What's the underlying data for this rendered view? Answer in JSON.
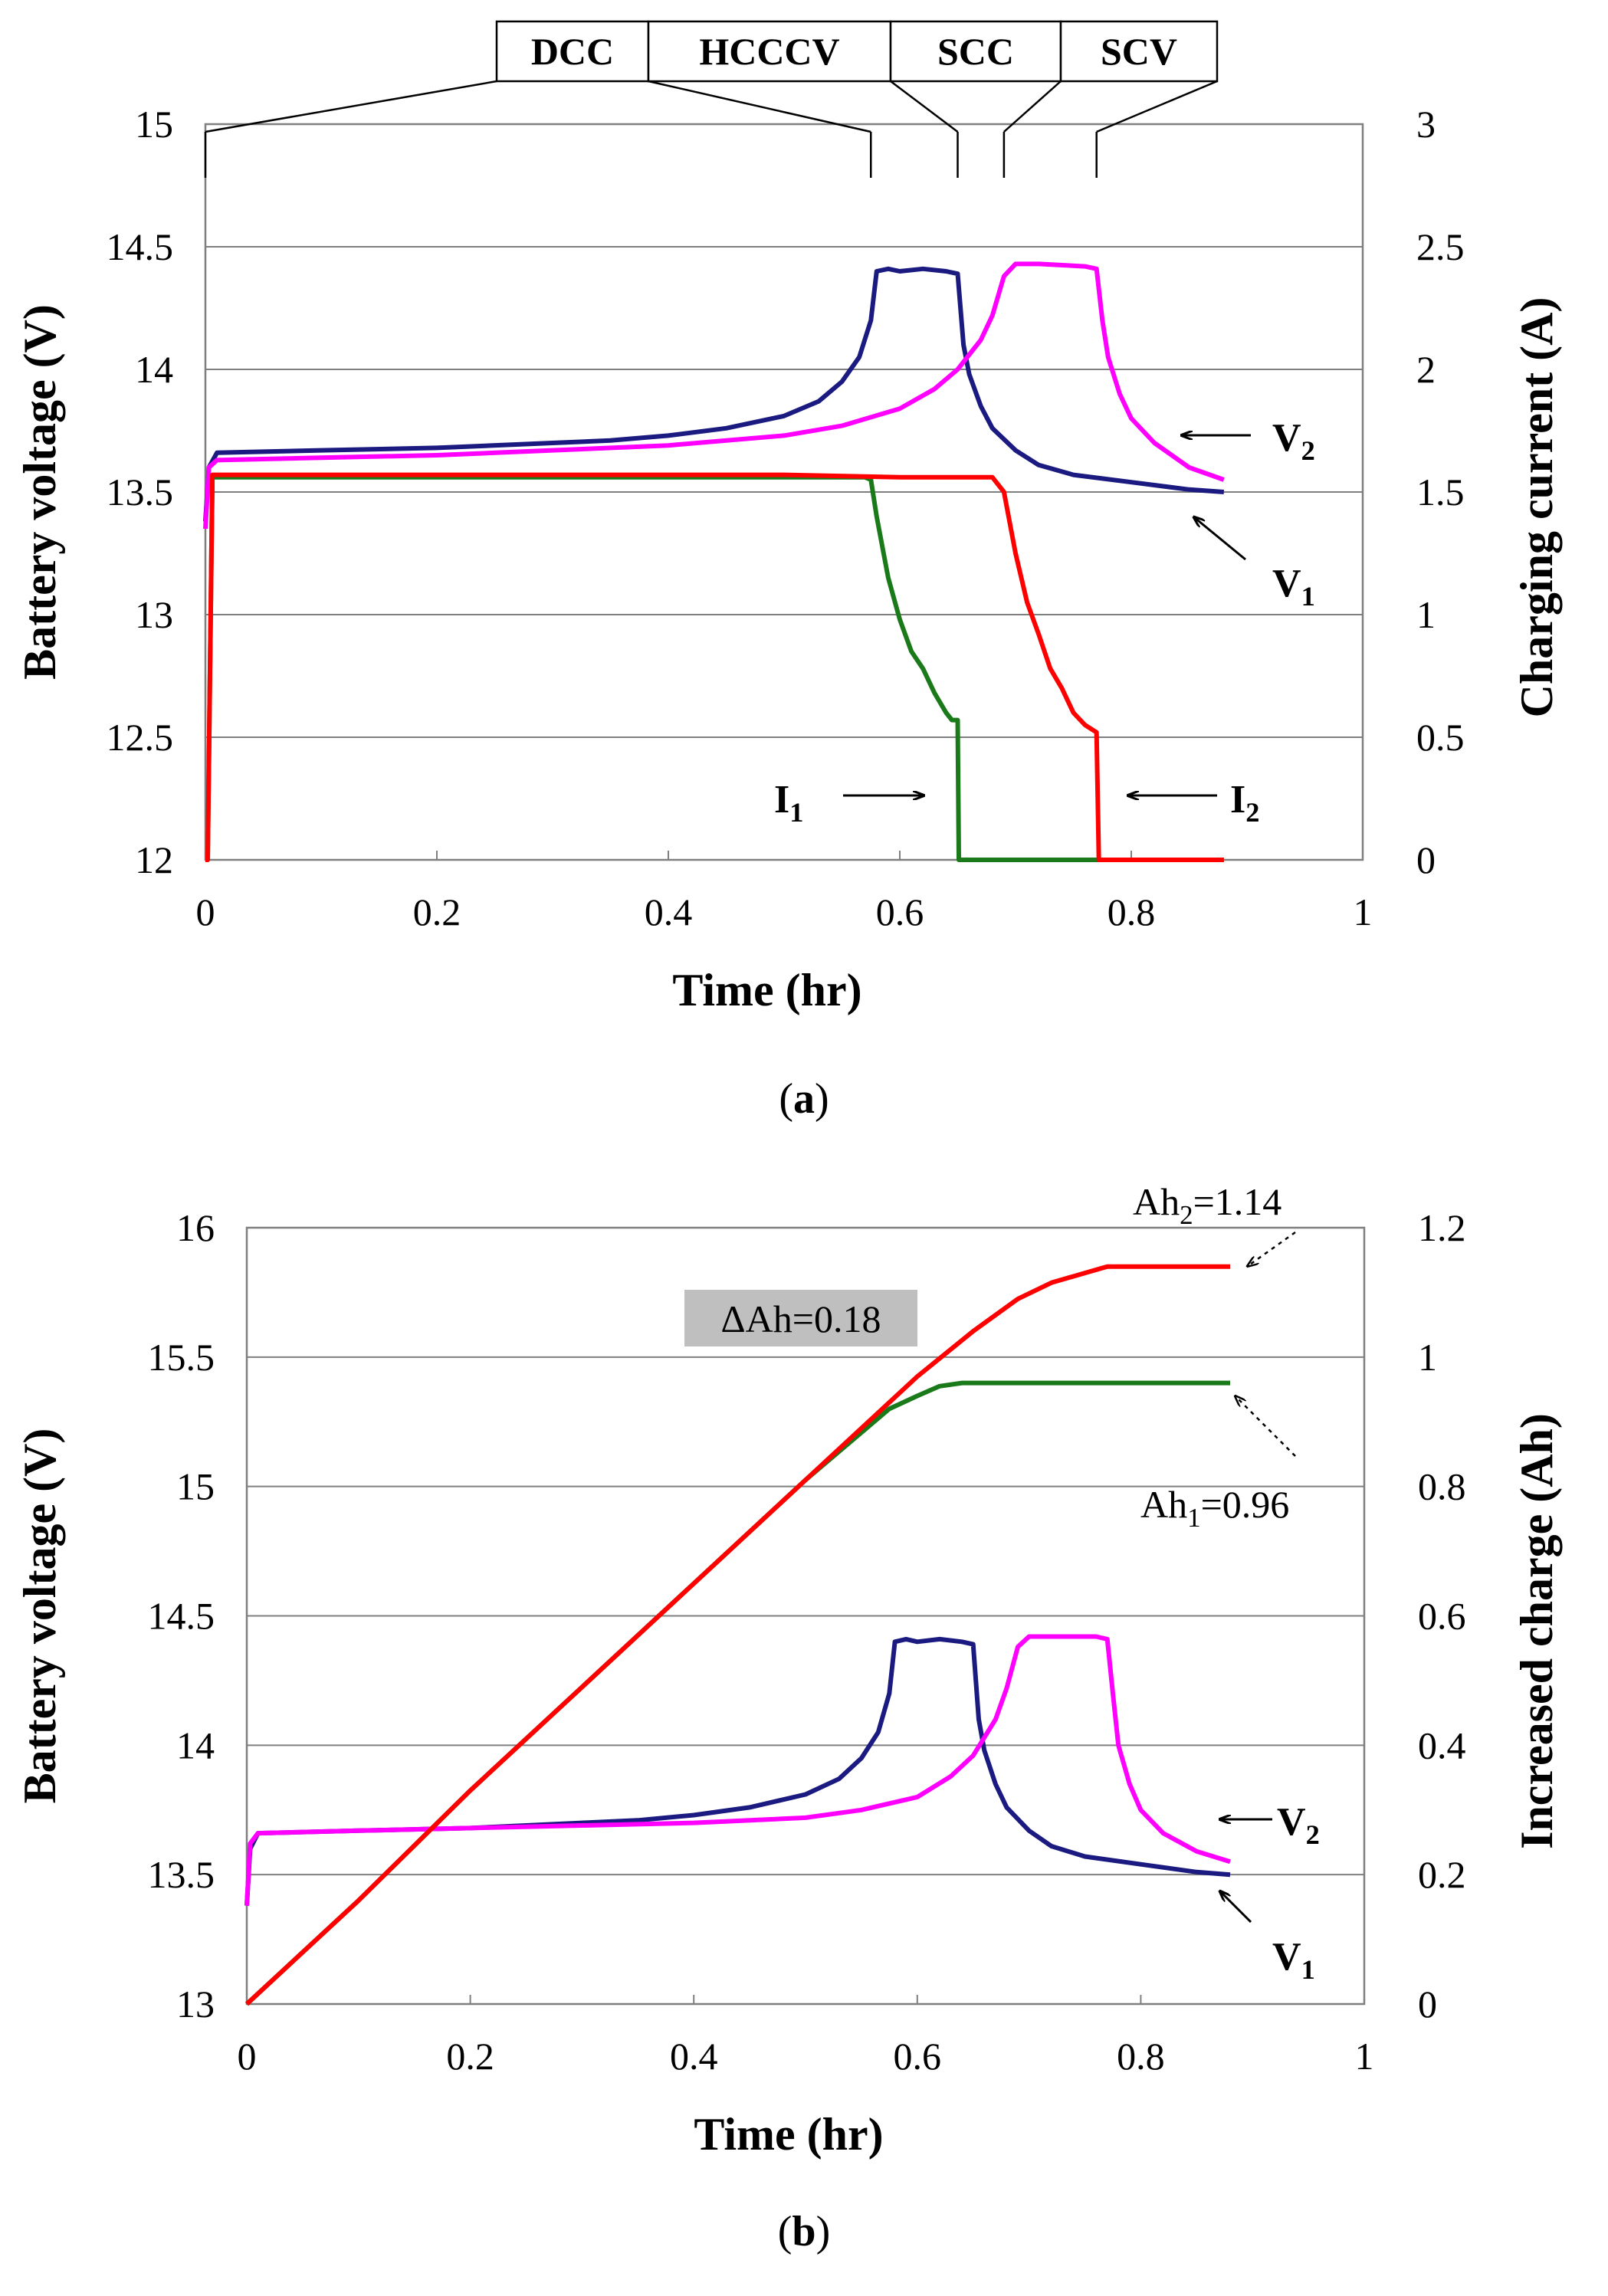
{
  "chart_data": [
    {
      "panel": "(a)",
      "panel_letter": "a",
      "type": "line",
      "xlabel": "Time (hr)",
      "ylabel_left": "Battery voltage (V)",
      "ylabel_right": "Charging current (A)",
      "xlim": [
        0,
        1
      ],
      "ylim_left": [
        12,
        15
      ],
      "ylim_right": [
        0,
        3
      ],
      "x_ticks": [
        "0",
        "0.2",
        "0.4",
        "0.6",
        "0.8",
        "1"
      ],
      "y_ticks_left": [
        "12",
        "12.5",
        "13",
        "13.5",
        "14",
        "14.5",
        "15"
      ],
      "y_ticks_right": [
        "0",
        "0.5",
        "1",
        "1.5",
        "2",
        "2.5",
        "3"
      ],
      "grid": "horizontal",
      "phases": [
        {
          "label": "DCC",
          "start": 0.0,
          "end": 0.575
        },
        {
          "label": "HCCCV",
          "start": 0.575,
          "end": 0.65
        },
        {
          "label": "SCC",
          "start": 0.65,
          "end": 0.69
        },
        {
          "label": "SCV",
          "start": 0.69,
          "end": 0.77
        }
      ],
      "series": [
        {
          "name": "V1",
          "axis": "left",
          "color": "#1a1a80",
          "x": [
            0,
            0.003,
            0.01,
            0.1,
            0.2,
            0.3,
            0.35,
            0.4,
            0.45,
            0.5,
            0.53,
            0.55,
            0.565,
            0.575,
            0.58,
            0.59,
            0.6,
            0.62,
            0.64,
            0.65,
            0.655,
            0.66,
            0.67,
            0.68,
            0.7,
            0.72,
            0.75,
            0.8,
            0.85,
            0.88
          ],
          "y": [
            13.38,
            13.6,
            13.66,
            13.67,
            13.68,
            13.7,
            13.71,
            13.73,
            13.76,
            13.81,
            13.87,
            13.95,
            14.05,
            14.2,
            14.4,
            14.41,
            14.4,
            14.41,
            14.4,
            14.39,
            14.1,
            13.98,
            13.85,
            13.76,
            13.67,
            13.61,
            13.57,
            13.54,
            13.51,
            13.5
          ]
        },
        {
          "name": "V2",
          "axis": "left",
          "color": "#ff00ff",
          "x": [
            0,
            0.003,
            0.01,
            0.1,
            0.2,
            0.3,
            0.4,
            0.5,
            0.55,
            0.6,
            0.63,
            0.65,
            0.67,
            0.68,
            0.69,
            0.7,
            0.72,
            0.76,
            0.77,
            0.775,
            0.78,
            0.79,
            0.8,
            0.82,
            0.85,
            0.88
          ],
          "y": [
            13.35,
            13.6,
            13.63,
            13.64,
            13.65,
            13.67,
            13.69,
            13.73,
            13.77,
            13.84,
            13.92,
            14.0,
            14.12,
            14.22,
            14.38,
            14.43,
            14.43,
            14.42,
            14.41,
            14.2,
            14.05,
            13.9,
            13.8,
            13.7,
            13.6,
            13.55
          ]
        },
        {
          "name": "I1",
          "axis": "right",
          "color": "#1a7a1a",
          "x": [
            0,
            0.002,
            0.006,
            0.1,
            0.2,
            0.3,
            0.4,
            0.5,
            0.57,
            0.575,
            0.58,
            0.59,
            0.6,
            0.61,
            0.62,
            0.63,
            0.64,
            0.645,
            0.65,
            0.651,
            0.7,
            0.8,
            0.88
          ],
          "y": [
            0,
            0,
            1.56,
            1.56,
            1.56,
            1.56,
            1.56,
            1.56,
            1.56,
            1.55,
            1.4,
            1.15,
            0.98,
            0.85,
            0.78,
            0.68,
            0.6,
            0.57,
            0.57,
            0,
            0,
            0,
            0
          ]
        },
        {
          "name": "I2",
          "axis": "right",
          "color": "#ff0000",
          "x": [
            0,
            0.002,
            0.006,
            0.1,
            0.2,
            0.3,
            0.4,
            0.5,
            0.6,
            0.68,
            0.69,
            0.7,
            0.71,
            0.72,
            0.73,
            0.74,
            0.75,
            0.76,
            0.77,
            0.772,
            0.8,
            0.88
          ],
          "y": [
            0,
            0,
            1.57,
            1.57,
            1.57,
            1.57,
            1.57,
            1.57,
            1.56,
            1.56,
            1.5,
            1.25,
            1.05,
            0.92,
            0.78,
            0.7,
            0.6,
            0.55,
            0.52,
            0,
            0,
            0
          ]
        }
      ],
      "annotations": [
        {
          "label": "V",
          "sub": "2",
          "target": "V2"
        },
        {
          "label": "V",
          "sub": "1",
          "target": "V1"
        },
        {
          "label": "I",
          "sub": "1",
          "target": "I1"
        },
        {
          "label": "I",
          "sub": "2",
          "target": "I2"
        }
      ]
    },
    {
      "panel": "(b)",
      "panel_letter": "b",
      "type": "line",
      "xlabel": "Time (hr)",
      "ylabel_left": "Battery voltage (V)",
      "ylabel_right": "Increased charge (Ah)",
      "xlim": [
        0,
        1
      ],
      "ylim_left": [
        13,
        16
      ],
      "ylim_right": [
        0,
        1.2
      ],
      "x_ticks": [
        "0",
        "0.2",
        "0.4",
        "0.6",
        "0.8",
        "1"
      ],
      "y_ticks_left": [
        "13",
        "13.5",
        "14",
        "14.5",
        "15",
        "15.5",
        "16"
      ],
      "y_ticks_right": [
        "0",
        "0.2",
        "0.4",
        "0.6",
        "0.8",
        "1",
        "1.2"
      ],
      "grid": "horizontal",
      "series": [
        {
          "name": "V1",
          "axis": "left",
          "color": "#1a1a80",
          "x": [
            0,
            0.003,
            0.01,
            0.1,
            0.2,
            0.3,
            0.35,
            0.4,
            0.45,
            0.5,
            0.53,
            0.55,
            0.565,
            0.575,
            0.58,
            0.59,
            0.6,
            0.62,
            0.64,
            0.65,
            0.655,
            0.66,
            0.67,
            0.68,
            0.7,
            0.72,
            0.75,
            0.8,
            0.85,
            0.88
          ],
          "y": [
            13.38,
            13.6,
            13.66,
            13.67,
            13.68,
            13.7,
            13.71,
            13.73,
            13.76,
            13.81,
            13.87,
            13.95,
            14.05,
            14.2,
            14.4,
            14.41,
            14.4,
            14.41,
            14.4,
            14.39,
            14.1,
            13.98,
            13.85,
            13.76,
            13.67,
            13.61,
            13.57,
            13.54,
            13.51,
            13.5
          ]
        },
        {
          "name": "V2",
          "axis": "left",
          "color": "#ff00ff",
          "x": [
            0,
            0.003,
            0.01,
            0.1,
            0.2,
            0.3,
            0.4,
            0.5,
            0.55,
            0.6,
            0.63,
            0.65,
            0.67,
            0.68,
            0.69,
            0.7,
            0.72,
            0.76,
            0.77,
            0.775,
            0.78,
            0.79,
            0.8,
            0.82,
            0.85,
            0.88
          ],
          "y": [
            13.38,
            13.62,
            13.66,
            13.67,
            13.68,
            13.69,
            13.7,
            13.72,
            13.75,
            13.8,
            13.88,
            13.96,
            14.1,
            14.22,
            14.38,
            14.42,
            14.42,
            14.42,
            14.41,
            14.2,
            14.0,
            13.85,
            13.75,
            13.66,
            13.59,
            13.55
          ]
        },
        {
          "name": "Ah1",
          "axis": "right",
          "color": "#1a7a1a",
          "x": [
            0,
            0.1,
            0.2,
            0.3,
            0.4,
            0.5,
            0.575,
            0.6,
            0.62,
            0.64,
            0.65,
            0.7,
            0.8,
            0.88
          ],
          "y": [
            0,
            0.16,
            0.33,
            0.49,
            0.65,
            0.81,
            0.92,
            0.94,
            0.955,
            0.96,
            0.96,
            0.96,
            0.96,
            0.96
          ]
        },
        {
          "name": "Ah2",
          "axis": "right",
          "color": "#ff0000",
          "x": [
            0,
            0.1,
            0.2,
            0.3,
            0.4,
            0.5,
            0.6,
            0.65,
            0.69,
            0.72,
            0.75,
            0.77,
            0.8,
            0.88
          ],
          "y": [
            0,
            0.16,
            0.33,
            0.49,
            0.65,
            0.81,
            0.97,
            1.04,
            1.09,
            1.115,
            1.13,
            1.14,
            1.14,
            1.14
          ]
        }
      ],
      "annotations": [
        {
          "label": "Ah",
          "sub": "2",
          "suffix": "=1.14",
          "target": "Ah2"
        },
        {
          "label": "Ah",
          "sub": "1",
          "suffix": "=0.96",
          "target": "Ah1"
        },
        {
          "label": "V",
          "sub": "2",
          "target": "V2"
        },
        {
          "label": "V",
          "sub": "1",
          "target": "V1"
        }
      ],
      "delta_label": "ΔAh=0.18"
    }
  ]
}
